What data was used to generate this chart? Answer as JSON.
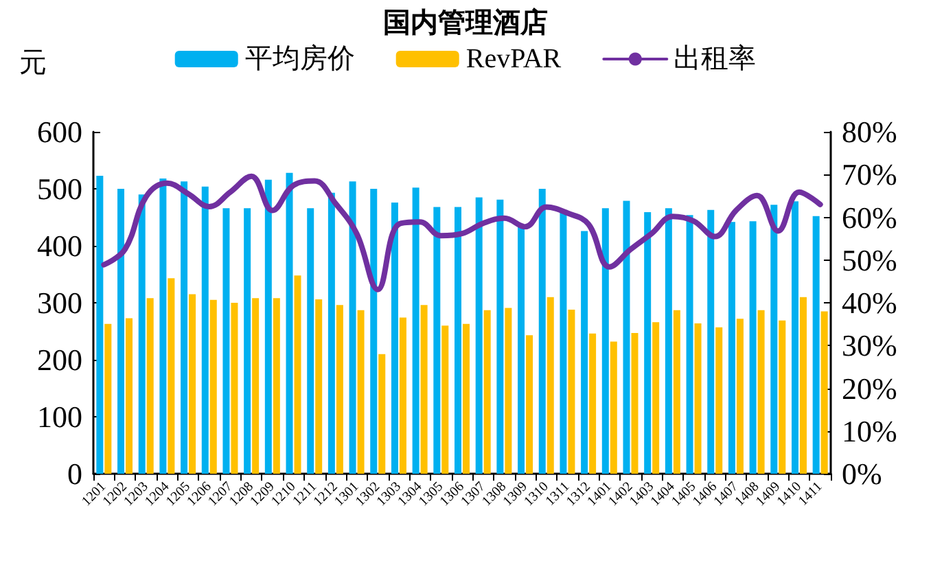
{
  "chart_data": {
    "type": "bar",
    "title": "国内管理酒店",
    "ylabel": "元",
    "categories": [
      "1201",
      "1202",
      "1203",
      "1204",
      "1205",
      "1206",
      "1207",
      "1208",
      "1209",
      "1210",
      "1211",
      "1212",
      "1301",
      "1302",
      "1303",
      "1304",
      "1305",
      "1306",
      "1307",
      "1308",
      "1309",
      "1310",
      "1311",
      "1312",
      "1401",
      "1402",
      "1403",
      "1404",
      "1405",
      "1406",
      "1407",
      "1408",
      "1409",
      "1410",
      "1411"
    ],
    "series": [
      {
        "name": "平均房价",
        "color": "#00b0f0",
        "values": [
          523,
          500,
          490,
          518,
          513,
          504,
          466,
          466,
          516,
          528,
          466,
          493,
          513,
          500,
          476,
          502,
          468,
          468,
          485,
          481,
          435,
          500,
          458,
          426,
          466,
          479,
          459,
          466,
          454,
          463,
          442,
          443,
          472,
          478,
          452
        ]
      },
      {
        "name": "RevPAR",
        "color": "#ffc000",
        "values": [
          263,
          273,
          308,
          343,
          315,
          305,
          300,
          308,
          308,
          348,
          306,
          296,
          287,
          210,
          274,
          296,
          260,
          263,
          287,
          291,
          243,
          310,
          288,
          246,
          232,
          247,
          266,
          287,
          264,
          257,
          272,
          287,
          269,
          310,
          285
        ]
      },
      {
        "name": "出租率",
        "type": "line",
        "axis": "y2",
        "color": "#7030a0",
        "values": [
          48.9,
          52.5,
          64.8,
          68.0,
          65.5,
          62.5,
          65.9,
          69.6,
          61.6,
          67.5,
          68.5,
          63.2,
          56.2,
          43.1,
          58.4,
          58.9,
          55.7,
          56.2,
          58.6,
          59.8,
          57.8,
          62.4,
          61.0,
          58.4,
          48.4,
          52.5,
          56.2,
          60.2,
          59.1,
          55.5,
          61.6,
          65.1,
          56.8,
          65.9,
          63.0
        ]
      }
    ],
    "ylim": [
      0,
      600
    ],
    "yticks": [
      0,
      100,
      200,
      300,
      400,
      500,
      600
    ],
    "y2lim": [
      0,
      80
    ],
    "y2ticks": [
      {
        "value": 0,
        "label": "0%"
      },
      {
        "value": 10,
        "label": "10%"
      },
      {
        "value": 20,
        "label": "20%"
      },
      {
        "value": 30,
        "label": "30%"
      },
      {
        "value": 40,
        "label": "40%"
      },
      {
        "value": 50,
        "label": "50%"
      },
      {
        "value": 60,
        "label": "60%"
      },
      {
        "value": 70,
        "label": "70%"
      },
      {
        "value": 80,
        "label": "80%"
      }
    ],
    "legend": "top",
    "grid": false,
    "marker": "none",
    "line_style": "solid"
  }
}
